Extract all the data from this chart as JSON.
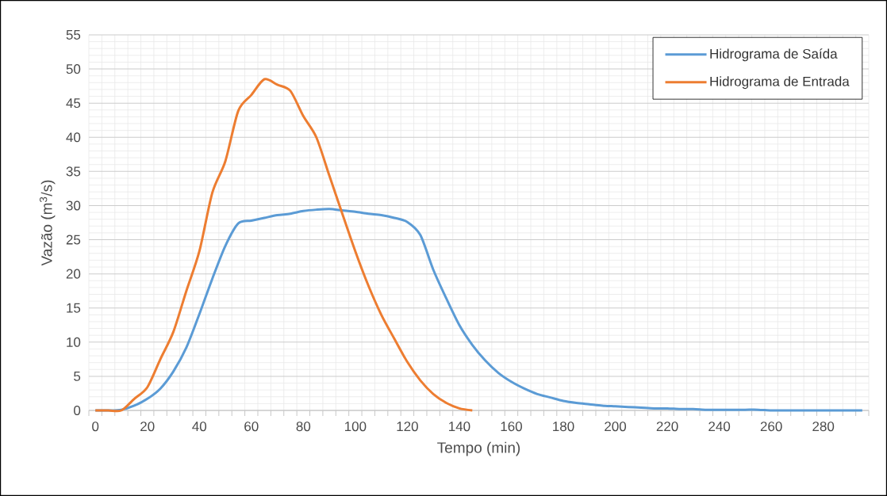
{
  "chart_data": {
    "type": "line",
    "xlabel": "Tempo (min)",
    "ylabel": "Vazão (m$^{3}$/s)",
    "categories": [
      "0",
      null,
      null,
      null,
      "20",
      null,
      null,
      null,
      "40",
      null,
      null,
      null,
      "60",
      null,
      null,
      null,
      "80",
      null,
      null,
      null,
      "100",
      null,
      null,
      null,
      "120",
      null,
      null,
      null,
      "140",
      null,
      null,
      null,
      "160",
      null,
      null,
      null,
      "180",
      null,
      null,
      null,
      "200",
      null,
      null,
      null,
      "220",
      null,
      null,
      null,
      "240",
      null,
      null,
      null,
      "260",
      null,
      null,
      null,
      "280",
      null,
      null,
      null
    ],
    "series": [
      {
        "name": "Hidrograma de Saída",
        "color": "#5b9bd5",
        "values": [
          0,
          0,
          0.1,
          0.7,
          1.7,
          3.2,
          5.7,
          9.2,
          14.1,
          19.3,
          24.1,
          27.4,
          27.8,
          28.2,
          28.6,
          28.8,
          29.2,
          29.4,
          29.5,
          29.3,
          29.1,
          28.8,
          28.6,
          28.2,
          27.6,
          25.7,
          20.6,
          16.4,
          12.5,
          9.6,
          7.3,
          5.5,
          4.2,
          3.2,
          2.4,
          1.9,
          1.4,
          1.1,
          0.9,
          0.7,
          0.6,
          0.5,
          0.4,
          0.3,
          0.3,
          0.2,
          0.2,
          0.1,
          0.1,
          0.1,
          0.1,
          0.1,
          0,
          0,
          0,
          0,
          0,
          0,
          0,
          0
        ]
      },
      {
        "name": "Hidrograma de Entrada",
        "color": "#ed7d31",
        "values": [
          0,
          0,
          0,
          1.7,
          3.4,
          7.5,
          11.5,
          17.5,
          23.3,
          31.9,
          36.5,
          43.9,
          46.2,
          48.5,
          47.7,
          46.8,
          43.1,
          40.0,
          34.4,
          28.8,
          23.3,
          18.3,
          14,
          10.5,
          7.1,
          4.4,
          2.4,
          1.1,
          0.3,
          0,
          null,
          null,
          null,
          null,
          null,
          null,
          null,
          null,
          null,
          null,
          null,
          null,
          null,
          null,
          null,
          null,
          null,
          null,
          null,
          null,
          null,
          null,
          null,
          null,
          null,
          null,
          null,
          null,
          null,
          null
        ]
      }
    ],
    "ylim": [
      0,
      55
    ],
    "yticks": [
      0,
      5,
      10,
      15,
      20,
      25,
      30,
      35,
      40,
      45,
      50,
      55
    ],
    "grid": true,
    "legend": "top right"
  }
}
